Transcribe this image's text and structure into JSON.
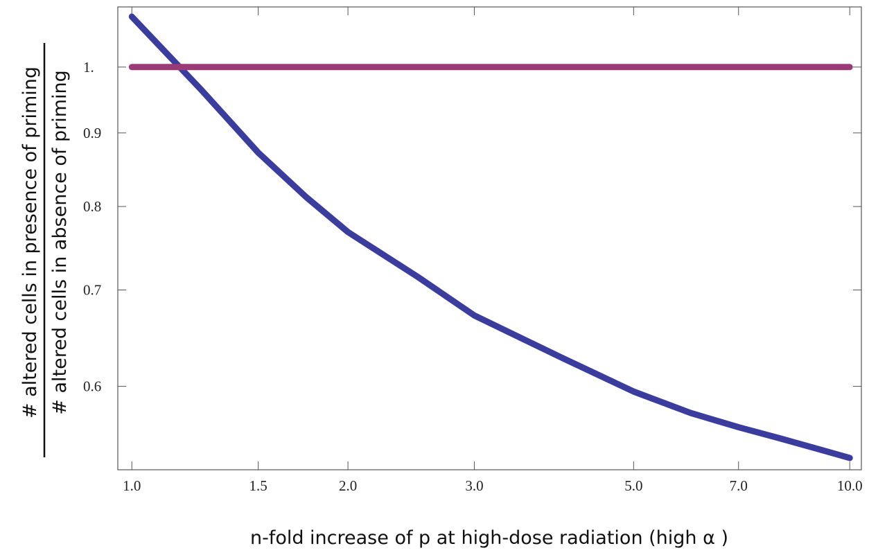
{
  "chart_data": {
    "type": "line",
    "xlabel": "n-fold increase of p at high-dose radiation (high α )",
    "ylabel_numerator": "# altered cells in presence of priming",
    "ylabel_denominator": "# altered cells in absence of priming",
    "xscale": "log",
    "yscale": "log",
    "xlim": [
      0.956,
      10.38
    ],
    "ylim": [
      0.525,
      1.101
    ],
    "xticks": [
      {
        "value": 1,
        "label": "1.0"
      },
      1.5,
      {
        "value": 2,
        "label": "2.0"
      },
      {
        "value": 3,
        "label": "3.0"
      },
      {
        "value": 5,
        "label": "5.0"
      },
      {
        "value": 7,
        "label": "7.0"
      },
      {
        "value": 10,
        "label": "10.0"
      }
    ],
    "yticks": [
      0.6,
      0.7,
      0.8,
      0.9,
      {
        "value": 1,
        "label": "1."
      }
    ],
    "series": [
      {
        "color": "#3a3d9e",
        "x": [
          1,
          1.25,
          1.5,
          1.75,
          2,
          2.5,
          3,
          4,
          5,
          6,
          7,
          8,
          9,
          10
        ],
        "values": [
          1.084,
          0.964,
          0.872,
          0.812,
          0.768,
          0.715,
          0.672,
          0.627,
          0.595,
          0.575,
          0.562,
          0.552,
          0.543,
          0.535
        ]
      },
      {
        "color": "#9a3b78",
        "x": [
          1,
          10
        ],
        "values": [
          1,
          1
        ]
      }
    ]
  }
}
